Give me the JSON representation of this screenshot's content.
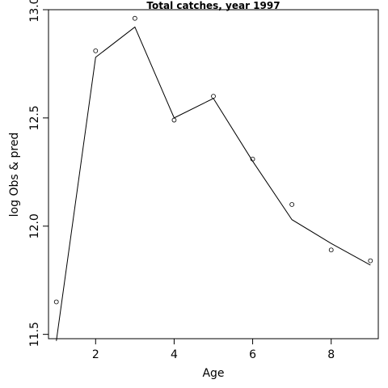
{
  "chart_data": {
    "type": "line",
    "title": "Total catches, year 1997",
    "xlabel": "Age",
    "ylabel": "log Obs & pred",
    "xlim": [
      0.8,
      9.2
    ],
    "ylim": [
      11.48,
      13.0
    ],
    "x_ticks": [
      2,
      4,
      6,
      8
    ],
    "x_tick_labels": [
      "2",
      "4",
      "6",
      "8"
    ],
    "y_ticks": [
      11.5,
      12.0,
      12.5,
      13.0
    ],
    "y_tick_labels": [
      "11.5",
      "12.0",
      "12.5",
      "13.0"
    ],
    "grid": false,
    "series": [
      {
        "kind": "points",
        "marker": "open-circle",
        "color": "#000000",
        "x": [
          1,
          2,
          3,
          4,
          5,
          6,
          7,
          8,
          9
        ],
        "y": [
          11.65,
          12.81,
          12.96,
          12.49,
          12.6,
          12.31,
          12.1,
          11.89,
          11.84
        ]
      },
      {
        "kind": "line",
        "color": "#000000",
        "x": [
          1,
          2,
          3,
          4,
          5,
          6,
          7,
          8,
          9
        ],
        "y": [
          11.47,
          12.78,
          12.92,
          12.5,
          12.59,
          12.3,
          12.03,
          11.92,
          11.82
        ]
      }
    ]
  }
}
